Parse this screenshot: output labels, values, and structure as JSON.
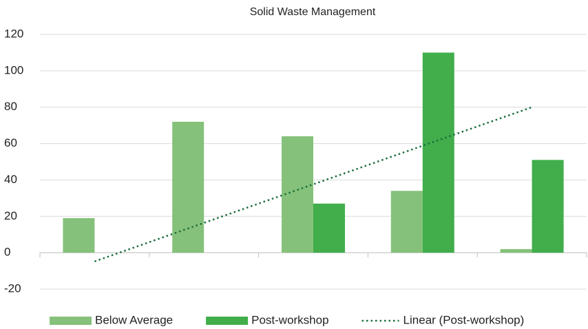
{
  "chart_data": {
    "type": "bar",
    "title": "Solid Waste Management",
    "categories": [
      null,
      null,
      null,
      null,
      null
    ],
    "series": [
      {
        "name": "Below Average",
        "color": "#85c17a",
        "values": [
          19,
          72,
          64,
          34,
          2
        ]
      },
      {
        "name": "Post-workshop",
        "color": "#41ae4b",
        "values": [
          0,
          0,
          27,
          110,
          51
        ],
        "trendline": {
          "name": "Linear (Post-workshop)",
          "color": "#1a6e3c",
          "style": "dotted"
        }
      }
    ],
    "ylim": [
      -20,
      120
    ],
    "yticks": [
      -20,
      0,
      20,
      40,
      60,
      80,
      100,
      120
    ],
    "grid": true,
    "legend": "bottom"
  }
}
